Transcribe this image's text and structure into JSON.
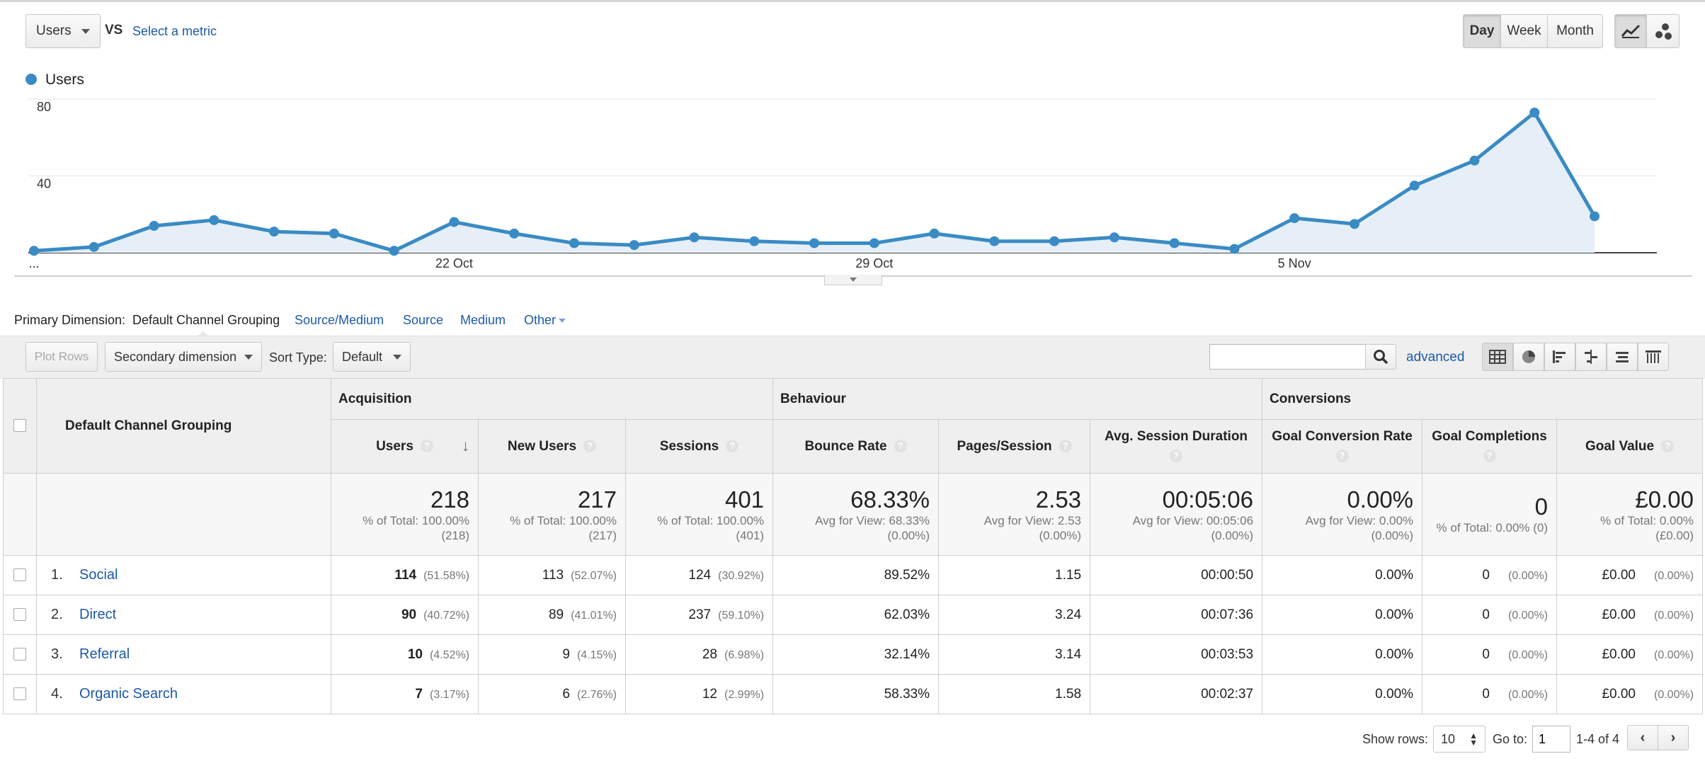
{
  "toolbar": {
    "metric_select": "Users",
    "vs_label": "VS",
    "select_metric_link": "Select a metric",
    "period_buttons": [
      "Day",
      "Week",
      "Month"
    ],
    "active_period": "Day",
    "line_chart_icon": "line-chart-icon",
    "motion_chart_icon": "motion-chart-icon"
  },
  "chart_data": {
    "type": "area",
    "title": "",
    "legend": [
      "Users"
    ],
    "series": [
      {
        "name": "Users",
        "values": [
          1,
          3,
          14,
          17,
          11,
          10,
          1,
          16,
          10,
          5,
          4,
          8,
          6,
          5,
          5,
          10,
          6,
          6,
          8,
          5,
          2,
          18,
          15,
          35,
          48,
          73,
          19
        ]
      }
    ],
    "x_tick_labels": [
      "...",
      "22 Oct",
      "29 Oct",
      "5 Nov"
    ],
    "y_tick_labels": [
      "80",
      "40"
    ],
    "ylim": [
      0,
      80
    ],
    "grid": true,
    "color": "#3a8bc4"
  },
  "dimension_bar": {
    "label": "Primary Dimension:",
    "active": "Default Channel Grouping",
    "options": [
      "Source/Medium",
      "Source",
      "Medium",
      "Other"
    ]
  },
  "controls": {
    "plot_rows": "Plot Rows",
    "secondary_dimension": "Secondary dimension",
    "sort_type_label": "Sort Type:",
    "sort_type_value": "Default",
    "search_value": "",
    "advanced_link": "advanced",
    "view_icons": [
      "data-table-icon",
      "pie-chart-icon",
      "performance-icon",
      "comparison-icon",
      "term-cloud-icon",
      "pivot-icon"
    ]
  },
  "table": {
    "dimension_header": "Default Channel Grouping",
    "groups": [
      "Acquisition",
      "Behaviour",
      "Conversions"
    ],
    "columns": [
      "Users",
      "New Users",
      "Sessions",
      "Bounce Rate",
      "Pages/Session",
      "Avg. Session Duration",
      "Goal Conversion Rate",
      "Goal Completions",
      "Goal Value"
    ],
    "totals": [
      {
        "value": "218",
        "sub1": "% of Total: 100.00%",
        "sub2": "(218)"
      },
      {
        "value": "217",
        "sub1": "% of Total: 100.00%",
        "sub2": "(217)"
      },
      {
        "value": "401",
        "sub1": "% of Total: 100.00%",
        "sub2": "(401)"
      },
      {
        "value": "68.33%",
        "sub1": "Avg for View: 68.33%",
        "sub2": "(0.00%)"
      },
      {
        "value": "2.53",
        "sub1": "Avg for View: 2.53",
        "sub2": "(0.00%)"
      },
      {
        "value": "00:05:06",
        "sub1": "Avg for View: 00:05:06",
        "sub2": "(0.00%)"
      },
      {
        "value": "0.00%",
        "sub1": "Avg for View: 0.00%",
        "sub2": "(0.00%)"
      },
      {
        "value": "0",
        "sub1": "% of Total: 0.00% (0)",
        "sub2": ""
      },
      {
        "value": "£0.00",
        "sub1": "% of Total: 0.00%",
        "sub2": "(£0.00)"
      }
    ],
    "rows": [
      {
        "index": "1.",
        "name": "Social",
        "users": "114",
        "users_pct": "(51.58%)",
        "new_users": "113",
        "new_users_pct": "(52.07%)",
        "sessions": "124",
        "sessions_pct": "(30.92%)",
        "bounce": "89.52%",
        "pages": "1.15",
        "duration": "00:00:50",
        "conv_rate": "0.00%",
        "completions": "0",
        "completions_pct": "(0.00%)",
        "value": "£0.00",
        "value_pct": "(0.00%)"
      },
      {
        "index": "2.",
        "name": "Direct",
        "users": "90",
        "users_pct": "(40.72%)",
        "new_users": "89",
        "new_users_pct": "(41.01%)",
        "sessions": "237",
        "sessions_pct": "(59.10%)",
        "bounce": "62.03%",
        "pages": "3.24",
        "duration": "00:07:36",
        "conv_rate": "0.00%",
        "completions": "0",
        "completions_pct": "(0.00%)",
        "value": "£0.00",
        "value_pct": "(0.00%)"
      },
      {
        "index": "3.",
        "name": "Referral",
        "users": "10",
        "users_pct": "(4.52%)",
        "new_users": "9",
        "new_users_pct": "(4.15%)",
        "sessions": "28",
        "sessions_pct": "(6.98%)",
        "bounce": "32.14%",
        "pages": "3.14",
        "duration": "00:03:53",
        "conv_rate": "0.00%",
        "completions": "0",
        "completions_pct": "(0.00%)",
        "value": "£0.00",
        "value_pct": "(0.00%)"
      },
      {
        "index": "4.",
        "name": "Organic Search",
        "users": "7",
        "users_pct": "(3.17%)",
        "new_users": "6",
        "new_users_pct": "(2.76%)",
        "sessions": "12",
        "sessions_pct": "(2.99%)",
        "bounce": "58.33%",
        "pages": "1.58",
        "duration": "00:02:37",
        "conv_rate": "0.00%",
        "completions": "0",
        "completions_pct": "(0.00%)",
        "value": "£0.00",
        "value_pct": "(0.00%)"
      }
    ]
  },
  "pagination": {
    "show_rows_label": "Show rows:",
    "show_rows_value": "10",
    "goto_label": "Go to:",
    "goto_value": "1",
    "range_text": "1-4 of 4"
  }
}
